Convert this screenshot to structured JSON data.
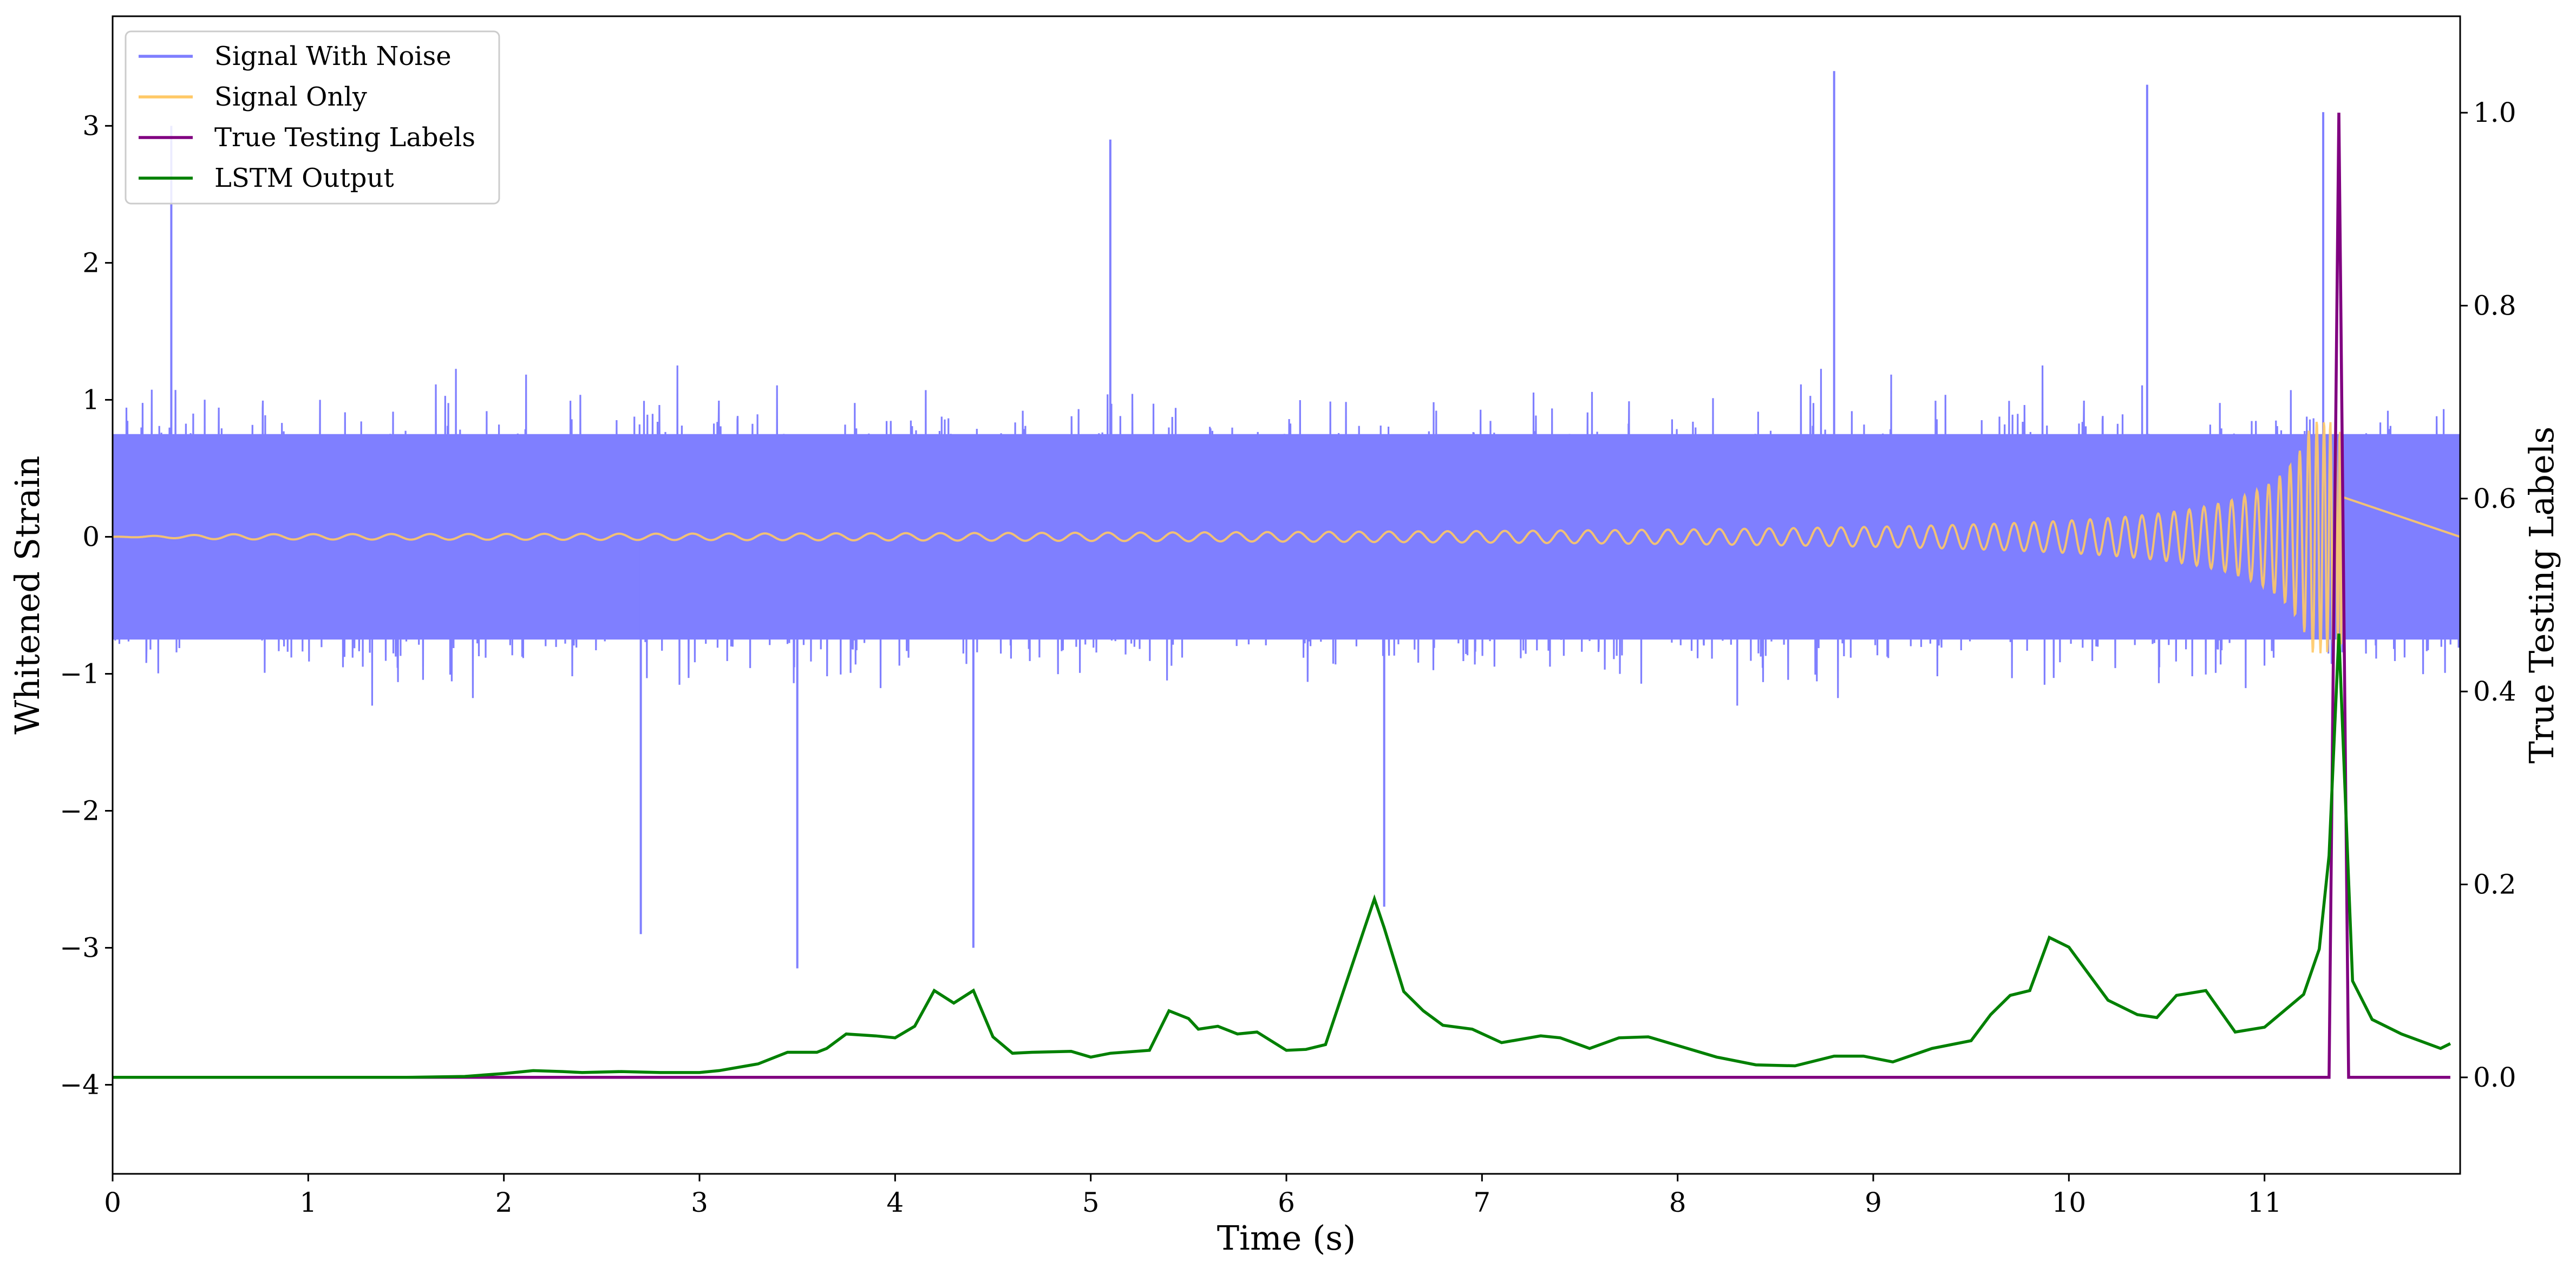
{
  "chart_data": {
    "type": "line",
    "xlabel": "Time (s)",
    "ylabel_left": "Whitened Strain",
    "ylabel_right": "True Testing Labels",
    "xlim": [
      0,
      12
    ],
    "ylim_left": [
      -4.65,
      3.8
    ],
    "ylim_right": [
      -0.1,
      1.1
    ],
    "x_ticks": [
      "0",
      "1",
      "2",
      "3",
      "4",
      "5",
      "6",
      "7",
      "8",
      "9",
      "10",
      "11"
    ],
    "y_left_ticks": [
      "−4",
      "−3",
      "−2",
      "−1",
      "0",
      "1",
      "2",
      "3"
    ],
    "y_right_ticks": [
      "0.0",
      "0.2",
      "0.4",
      "0.6",
      "0.8",
      "1.0"
    ],
    "grid": false,
    "legend_position": "top-left",
    "series": [
      {
        "name": "Signal With Noise",
        "axis": "left",
        "color": "#7f7fff",
        "mean": 0,
        "spread_low": -1.7,
        "spread_high": 1.9,
        "notable_peaks": [
          {
            "x": 8.8,
            "y": 3.4
          },
          {
            "x": 10.4,
            "y": 3.3
          },
          {
            "x": 11.3,
            "y": 3.1
          },
          {
            "x": 0.3,
            "y": 3.0
          },
          {
            "x": 5.1,
            "y": 2.9
          },
          {
            "x": 3.5,
            "y": -3.15
          },
          {
            "x": 4.4,
            "y": -3.0
          },
          {
            "x": 6.5,
            "y": -2.7
          },
          {
            "x": 2.7,
            "y": -2.9
          }
        ]
      },
      {
        "name": "Signal Only",
        "axis": "left",
        "color": "#ffc966",
        "chirp_end_time": 11.4,
        "final_amplitude": 0.85
      },
      {
        "name": "True Testing Labels",
        "axis": "right",
        "color": "#800080",
        "x": [
          0,
          11.33,
          11.38,
          11.43,
          11.95
        ],
        "y": [
          0,
          0,
          1.0,
          0,
          0
        ]
      },
      {
        "name": "LSTM Output",
        "axis": "right",
        "color": "#008000",
        "x": [
          0,
          1.5,
          1.8,
          2.0,
          2.15,
          2.3,
          2.4,
          2.6,
          2.8,
          3.0,
          3.1,
          3.3,
          3.45,
          3.6,
          3.65,
          3.75,
          3.9,
          4.0,
          4.1,
          4.2,
          4.3,
          4.4,
          4.5,
          4.6,
          4.7,
          4.9,
          5.0,
          5.1,
          5.3,
          5.4,
          5.5,
          5.55,
          5.65,
          5.75,
          5.85,
          6.0,
          6.1,
          6.2,
          6.4,
          6.45,
          6.5,
          6.6,
          6.7,
          6.8,
          6.95,
          7.1,
          7.3,
          7.4,
          7.55,
          7.7,
          7.85,
          8.0,
          8.2,
          8.4,
          8.6,
          8.8,
          8.95,
          9.1,
          9.3,
          9.5,
          9.6,
          9.7,
          9.8,
          9.9,
          10.0,
          10.2,
          10.35,
          10.45,
          10.55,
          10.7,
          10.85,
          11.0,
          11.2,
          11.28,
          11.33,
          11.38,
          11.45,
          11.55,
          11.7,
          11.9,
          11.95
        ],
        "y": [
          0,
          0,
          0.001,
          0.004,
          0.007,
          0.006,
          0.005,
          0.006,
          0.005,
          0.005,
          0.007,
          0.014,
          0.026,
          0.026,
          0.03,
          0.045,
          0.043,
          0.041,
          0.053,
          0.09,
          0.077,
          0.09,
          0.042,
          0.025,
          0.026,
          0.027,
          0.021,
          0.025,
          0.028,
          0.069,
          0.061,
          0.05,
          0.053,
          0.045,
          0.047,
          0.028,
          0.029,
          0.034,
          0.155,
          0.185,
          0.155,
          0.089,
          0.069,
          0.054,
          0.05,
          0.036,
          0.043,
          0.041,
          0.03,
          0.041,
          0.042,
          0.033,
          0.021,
          0.013,
          0.012,
          0.022,
          0.022,
          0.016,
          0.03,
          0.038,
          0.065,
          0.085,
          0.09,
          0.145,
          0.135,
          0.08,
          0.065,
          0.062,
          0.085,
          0.09,
          0.047,
          0.052,
          0.086,
          0.133,
          0.23,
          0.46,
          0.1,
          0.06,
          0.045,
          0.03,
          0.035
        ]
      }
    ]
  }
}
